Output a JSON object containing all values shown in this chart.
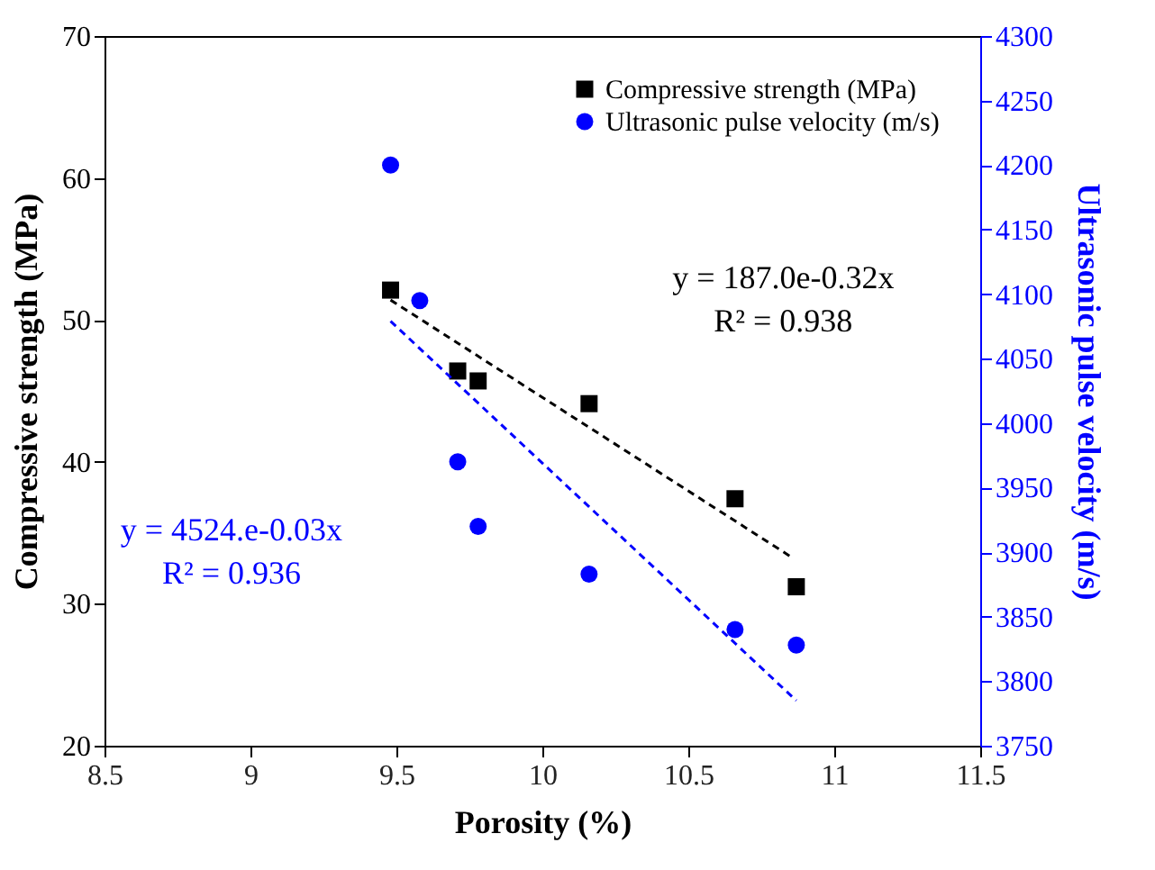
{
  "chart_data": {
    "type": "scatter",
    "xlabel": "Porosity (%)",
    "ylabel": "Compressive strength (MPa)",
    "y2label": "Ultrasonic pulse velocity (m/s)",
    "xlim": [
      8.5,
      11.5
    ],
    "xticks": [
      8.5,
      9,
      9.5,
      10,
      10.5,
      11,
      11.5
    ],
    "ylim": [
      20,
      70
    ],
    "yticks": [
      20,
      30,
      40,
      50,
      60,
      70
    ],
    "y2lim": [
      3750,
      4300
    ],
    "y2ticks": [
      3750,
      3800,
      3850,
      3900,
      3950,
      4000,
      4050,
      4100,
      4150,
      4200,
      4250,
      4300
    ],
    "legend": "top right",
    "grid": false,
    "annotations": [
      "y = 187.0e-0.32x\nR² = 0.938",
      "y = 4524.e-0.03x\nR² = 0.936"
    ],
    "series": [
      {
        "name": "Compressive strength (MPa)",
        "type": "scatter",
        "marker": "square",
        "color": "#000000",
        "x": [
          9.48,
          9.71,
          9.78,
          10.16,
          10.66,
          10.87
        ],
        "values": [
          52.1,
          46.4,
          45.7,
          44.1,
          37.4,
          31.2
        ]
      },
      {
        "name": "Ultrasonic pulse velocity (m/s)",
        "type": "scatter",
        "marker": "circle",
        "color": "#0000ff",
        "axis": "y2",
        "x": [
          9.48,
          9.58,
          9.71,
          9.78,
          10.16,
          10.66,
          10.87
        ],
        "values": [
          4200,
          4095,
          3970,
          3920,
          3883,
          3840,
          3828
        ]
      },
      {
        "type": "line",
        "line_style": "dashed",
        "marker": "none",
        "color": "#000000",
        "x": [
          9.48,
          10.86
        ],
        "values": [
          51.4,
          33.2
        ]
      },
      {
        "type": "line",
        "line_style": "dashed",
        "marker": "none",
        "color": "#0000ff",
        "axis": "y2",
        "x": [
          9.48,
          10.87
        ],
        "values": [
          4079,
          3785
        ]
      }
    ]
  }
}
